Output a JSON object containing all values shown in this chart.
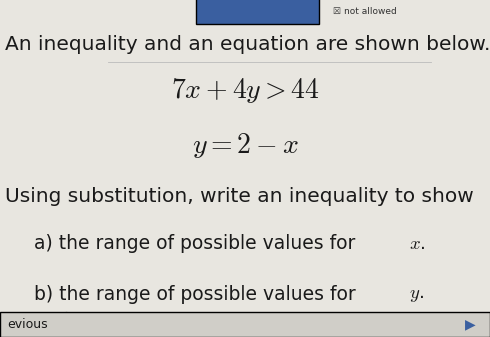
{
  "bg_color": "#e8e6e0",
  "title_bar_color": "#3a5fa0",
  "not_allowed_text": "not allowed",
  "intro_text": "An inequality and an equation are shown below.",
  "eq1": "$7x + 4y > 44$",
  "eq2": "$y = 2 - x$",
  "instruction": "Using substitution, write an inequality to show",
  "part_a": "a) the range of possible values for ",
  "part_a_var": "$x$.",
  "part_b": "b) the range of possible values for ",
  "part_b_var": "$y$.",
  "prev_text": "evious",
  "text_color": "#1a1a1a",
  "intro_fontsize": 14.5,
  "eq_fontsize": 20,
  "instruction_fontsize": 14.5,
  "parts_fontsize": 13.5
}
